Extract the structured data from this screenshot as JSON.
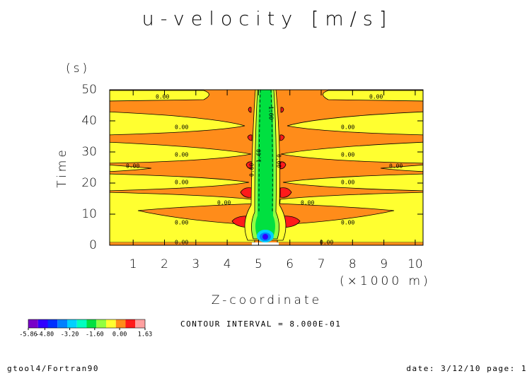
{
  "chart_data": {
    "type": "contour",
    "title": "u-velocity [m/s]",
    "y_label": "Time",
    "y_unit": "(s)",
    "x_label": "Z-coordinate",
    "x_unit": "(×1000 m)",
    "xlim": [
      0.25,
      10.25
    ],
    "xticks": [
      1,
      2,
      3,
      4,
      5,
      6,
      7,
      8,
      9,
      10
    ],
    "ylim": [
      0,
      50
    ],
    "yticks": [
      0,
      10,
      20,
      30,
      40,
      50
    ],
    "contour_labels": [
      "0.00",
      "-1.60",
      "1.60"
    ],
    "colorbar": {
      "colors": [
        "#7800c8",
        "#3000ff",
        "#0030ff",
        "#0080ff",
        "#00d0ff",
        "#00ffc0",
        "#00e040",
        "#90ff40",
        "#ffff30",
        "#ff8c1a",
        "#ff1a1a",
        "#ffa0a0"
      ],
      "lim": [
        -5.86,
        1.63
      ],
      "ticks": [
        {
          "value": -5.86,
          "label": "-5.86"
        },
        {
          "value": -4.8,
          "label": "-4.80"
        },
        {
          "value": -3.2,
          "label": "-3.20"
        },
        {
          "value": -1.6,
          "label": "-1.60"
        },
        {
          "value": 0,
          "label": "0.00"
        },
        {
          "value": 1.63,
          "label": "1.63"
        }
      ]
    },
    "contour_interval": "CONTOUR INTERVAL = 8.000E-01",
    "footer_left": "gtool4/Fortran90",
    "footer_right": "date: 3/12/10 page: 1"
  }
}
